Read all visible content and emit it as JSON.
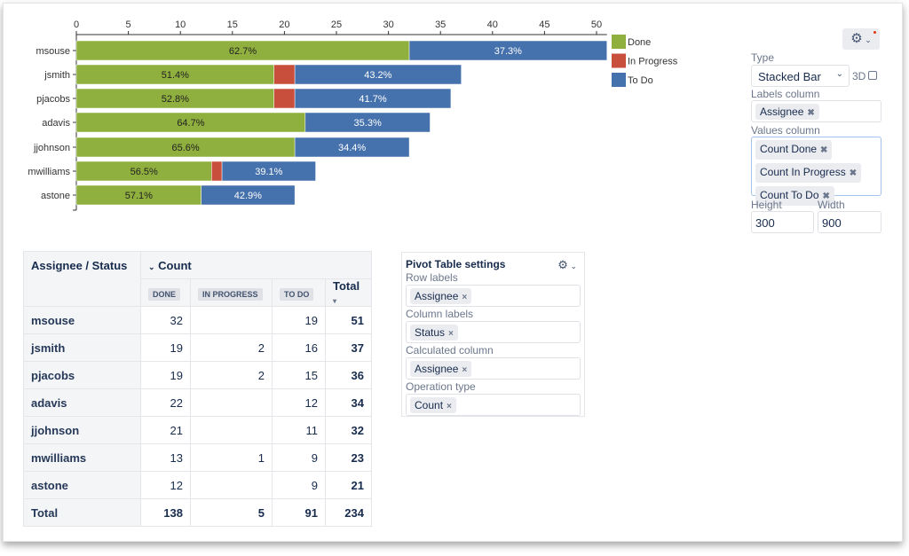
{
  "chart_data": {
    "type": "bar",
    "stacked": true,
    "orientation": "horizontal",
    "categories": [
      "msouse",
      "jsmith",
      "pjacobs",
      "adavis",
      "jjohnson",
      "mwilliams",
      "astone"
    ],
    "series": [
      {
        "name": "Done",
        "color": "#8fb03e",
        "values": [
          32,
          19,
          19,
          22,
          21,
          13,
          12
        ],
        "labels": [
          "62.7%",
          "51.4%",
          "52.8%",
          "64.7%",
          "65.6%",
          "56.5%",
          "57.1%"
        ]
      },
      {
        "name": "In Progress",
        "color": "#c94f3d",
        "values": [
          0,
          2,
          2,
          0,
          0,
          1,
          0
        ],
        "labels": [
          "",
          "",
          "",
          "",
          "",
          "",
          ""
        ]
      },
      {
        "name": "To Do",
        "color": "#4571ac",
        "values": [
          19,
          16,
          15,
          12,
          11,
          9,
          9
        ],
        "labels": [
          "37.3%",
          "43.2%",
          "41.7%",
          "35.3%",
          "34.4%",
          "39.1%",
          "42.9%"
        ]
      }
    ],
    "xticks": [
      0,
      5,
      10,
      15,
      20,
      25,
      30,
      35,
      40,
      45,
      50
    ],
    "xlim": [
      0,
      51
    ],
    "legend": "right"
  },
  "settings": {
    "type_label": "Type",
    "type_value": "Stacked Bar",
    "threed_label": "3D",
    "labels_column_label": "Labels column",
    "labels_column": [
      "Assignee"
    ],
    "values_column_label": "Values column",
    "values_column": [
      "Count Done",
      "Count In Progress",
      "Count To Do"
    ],
    "height_label": "Height",
    "height_value": "300",
    "width_label": "Width",
    "width_value": "900"
  },
  "pivot": {
    "corner": "Assignee / Status",
    "count": "Count",
    "columns": [
      "DONE",
      "IN PROGRESS",
      "TO DO"
    ],
    "total": "Total",
    "rows": [
      {
        "name": "msouse",
        "done": "32",
        "inprog": "",
        "todo": "19",
        "total": "51"
      },
      {
        "name": "jsmith",
        "done": "19",
        "inprog": "2",
        "todo": "16",
        "total": "37"
      },
      {
        "name": "pjacobs",
        "done": "19",
        "inprog": "2",
        "todo": "15",
        "total": "36"
      },
      {
        "name": "adavis",
        "done": "22",
        "inprog": "",
        "todo": "12",
        "total": "34"
      },
      {
        "name": "jjohnson",
        "done": "21",
        "inprog": "",
        "todo": "11",
        "total": "32"
      },
      {
        "name": "mwilliams",
        "done": "13",
        "inprog": "1",
        "todo": "9",
        "total": "23"
      },
      {
        "name": "astone",
        "done": "12",
        "inprog": "",
        "todo": "9",
        "total": "21"
      }
    ],
    "totals": {
      "name": "Total",
      "done": "138",
      "inprog": "5",
      "todo": "91",
      "total": "234"
    }
  },
  "pivot_settings": {
    "title": "Pivot Table settings",
    "row_labels_label": "Row labels",
    "row_labels": "Assignee",
    "column_labels_label": "Column labels",
    "column_labels": "Status",
    "calculated_label": "Calculated column",
    "calculated": "Assignee",
    "operation_label": "Operation type",
    "operation": "Count",
    "remove": "×"
  }
}
